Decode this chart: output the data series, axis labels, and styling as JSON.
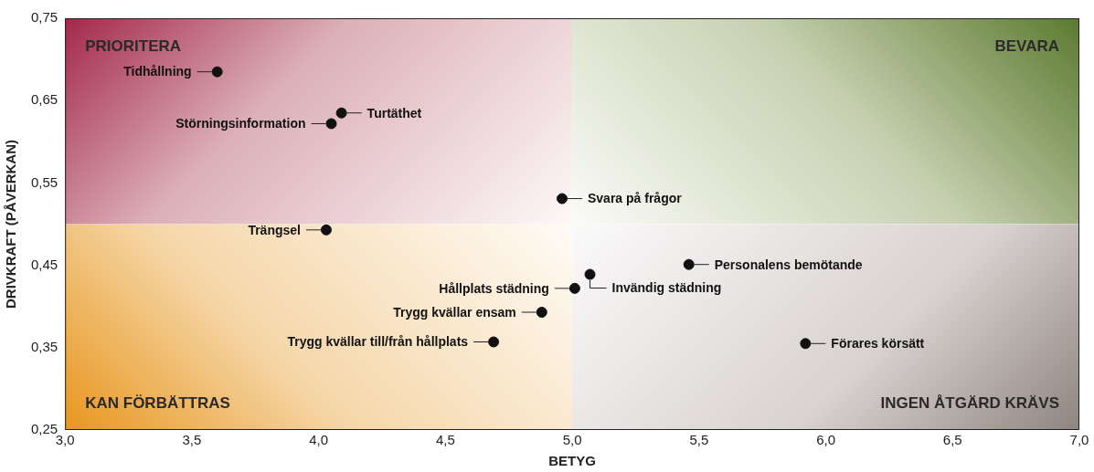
{
  "chart_data": {
    "type": "scatter",
    "xlabel": "BETYG",
    "ylabel": "DRIVKRAFT (PÅVERKAN)",
    "x": [
      3.6,
      4.09,
      4.05,
      4.96,
      4.03,
      5.46,
      5.07,
      5.01,
      4.88,
      4.69,
      5.92
    ],
    "values": [
      0.685,
      0.635,
      0.622,
      0.531,
      0.493,
      0.451,
      0.439,
      0.422,
      0.393,
      0.357,
      0.355
    ],
    "color": "#111111",
    "marker": "circle",
    "xlim": [
      3.0,
      7.0
    ],
    "xticks": [
      {
        "value": 3.0,
        "label": "3,0"
      },
      {
        "value": 3.5,
        "label": "3,5"
      },
      {
        "value": 4.0,
        "label": "4,0"
      },
      {
        "value": 4.5,
        "label": "4,5"
      },
      {
        "value": 5.0,
        "label": "5,0"
      },
      {
        "value": 5.5,
        "label": "5,5"
      },
      {
        "value": 6.0,
        "label": "6,0"
      },
      {
        "value": 6.5,
        "label": "6,5"
      },
      {
        "value": 7.0,
        "label": "7,0"
      }
    ],
    "ylim": [
      0.25,
      0.75
    ],
    "yticks": [
      {
        "value": 0.25,
        "label": "0,25"
      },
      {
        "value": 0.35,
        "label": "0,35"
      },
      {
        "value": 0.45,
        "label": "0,45"
      },
      {
        "value": 0.55,
        "label": "0,55"
      },
      {
        "value": 0.65,
        "label": "0,65"
      },
      {
        "value": 0.75,
        "label": "0,75"
      }
    ],
    "grid": false,
    "legend": false,
    "annotations": [
      "PRIORITERA",
      "BEVARA",
      "KAN FÖRBÄTTRAS",
      "INGEN ÅTGÄRD KRÄVS",
      {
        "text": "Tidhållning",
        "x": 3.6,
        "y": 0.685
      },
      {
        "text": "Turtäthet",
        "x": 4.09,
        "y": 0.635
      },
      {
        "text": "Störningsinformation",
        "x": 4.05,
        "y": 0.622
      },
      {
        "text": "Svara på frågor",
        "x": 4.96,
        "y": 0.531
      },
      {
        "text": "Trängsel",
        "x": 4.03,
        "y": 0.493
      },
      {
        "text": "Personalens bemötande",
        "x": 5.46,
        "y": 0.451
      },
      {
        "text": "Invändig städning",
        "x": 5.07,
        "y": 0.439
      },
      {
        "text": "Hållplats städning",
        "x": 5.01,
        "y": 0.422
      },
      {
        "text": "Trygg kvällar ensam",
        "x": 4.88,
        "y": 0.393
      },
      {
        "text": "Trygg kvällar till/från hållplats",
        "x": 4.69,
        "y": 0.357
      },
      {
        "text": "Förares körsätt",
        "x": 5.92,
        "y": 0.355
      }
    ]
  }
}
